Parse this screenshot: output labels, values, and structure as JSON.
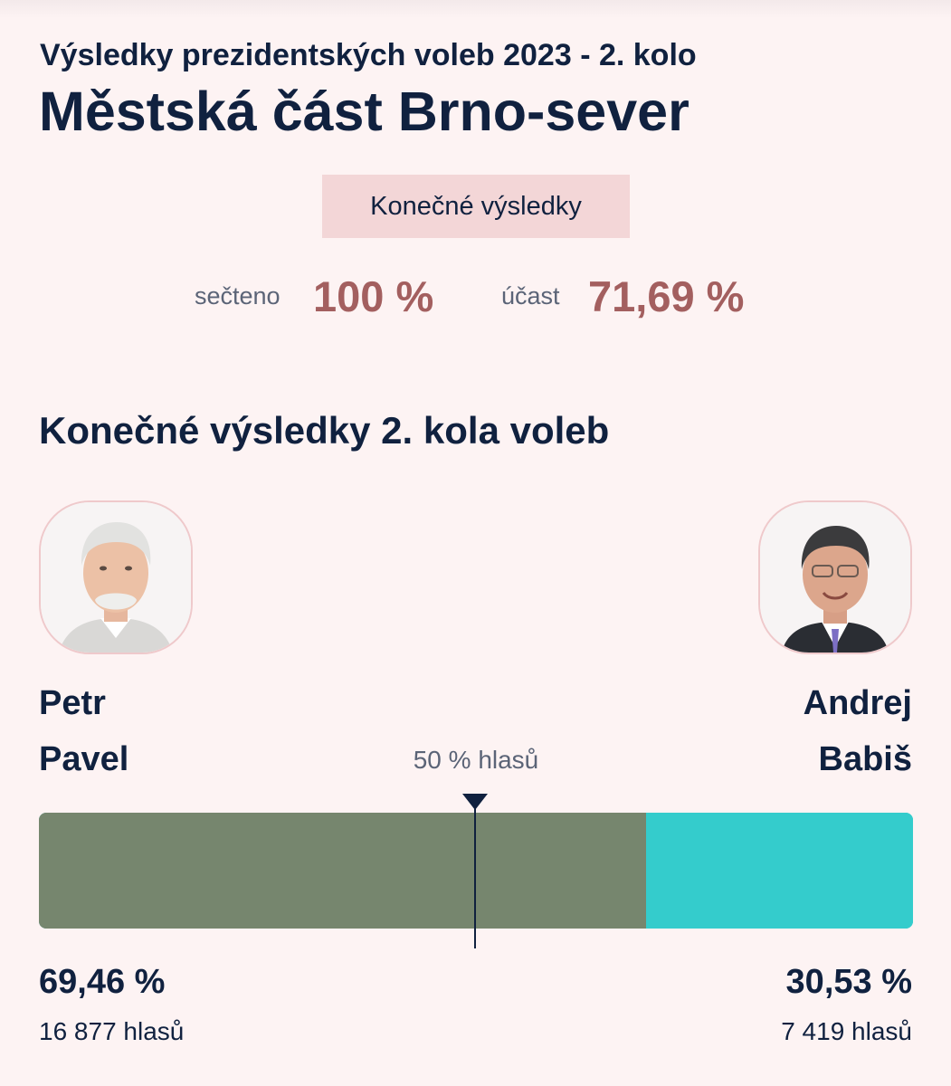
{
  "header": {
    "subtitle": "Výsledky prezidentských voleb 2023 - 2. kolo",
    "title": "Městská část Brno-sever"
  },
  "status": {
    "badge": "Konečné výsledky"
  },
  "stats": {
    "counted_label": "sečteno",
    "counted_value": "100 %",
    "turnout_label": "účast",
    "turnout_value": "71,69 %"
  },
  "section": {
    "title": "Konečné výsledky 2. kola voleb"
  },
  "candidates": [
    {
      "first_name": "Petr",
      "last_name": "Pavel",
      "percent": "69,46 %",
      "share": 69.46,
      "votes": "16 877 hlasů",
      "color": "#76866e"
    },
    {
      "first_name": "Andrej",
      "last_name": "Babiš",
      "percent": "30,53 %",
      "share": 30.53,
      "votes": "7 419 hlasů",
      "color": "#34cccc"
    }
  ],
  "bar": {
    "midpoint_label": "50 % hlasů"
  },
  "colors": {
    "background": "#fdf3f3",
    "accent": "#a35f5f",
    "text": "#10213f",
    "badge": "#f3d6d7"
  }
}
